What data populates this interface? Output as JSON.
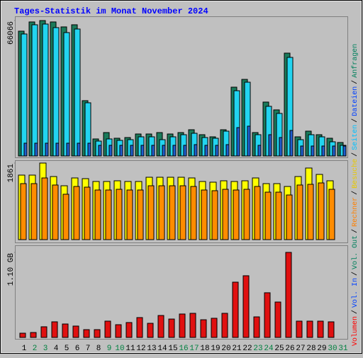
{
  "title": "Tages-Statistik im Monat November 2024",
  "legend_separator": "/",
  "chart_data": [
    {
      "type": "bar",
      "ylim": [
        0,
        66066
      ],
      "yticks": [
        66066
      ],
      "series": [
        {
          "name": "Anfragen",
          "color": "#1a7a5a",
          "label_color": "#00805c",
          "values": [
            60896,
            65394,
            66066,
            65394,
            62972,
            64010,
            26988,
            8304,
            11418,
            8650,
            8996,
            10726,
            10726,
            11418,
            10726,
            11418,
            12802,
            10380,
            9342,
            12802,
            33562,
            37368,
            11418,
            26296,
            22490,
            50170,
            9342,
            12110,
            10380,
            8650,
            6574
          ]
        },
        {
          "name": "Dateien",
          "color": "#22d4f0",
          "label_color": "#0040ff",
          "values": [
            59512,
            64010,
            64356,
            62626,
            60204,
            61934,
            25950,
            7266,
            8304,
            7612,
            7958,
            9342,
            9342,
            7958,
            9342,
            10380,
            11072,
            8996,
            8650,
            12110,
            31832,
            35984,
            10380,
            24220,
            20760,
            48094,
            7958,
            10380,
            9342,
            6920,
            5190
          ]
        },
        {
          "name": "Seiten",
          "color": "#1f5fd0",
          "label_color": "#00c0ff",
          "values": [
            6228,
            6228,
            6228,
            6228,
            6228,
            6228,
            6228,
            5190,
            5190,
            5190,
            5190,
            5190,
            5190,
            5190,
            5190,
            5190,
            5536,
            5190,
            5190,
            5536,
            13840,
            14532,
            5190,
            10380,
            8996,
            12456,
            4844,
            4844,
            4844,
            4844,
            4844
          ]
        }
      ]
    },
    {
      "type": "bar",
      "ylim": [
        0,
        1861
      ],
      "yticks": [
        1861
      ],
      "series": [
        {
          "name": "Besuche",
          "color": "#ffff00",
          "label_color": "#e8c800",
          "values": [
            1568,
            1568,
            1861,
            1533,
            1309,
            1499,
            1482,
            1413,
            1413,
            1430,
            1413,
            1413,
            1516,
            1516,
            1516,
            1516,
            1499,
            1413,
            1396,
            1430,
            1413,
            1430,
            1499,
            1361,
            1361,
            1292,
            1533,
            1740,
            1585,
            1430,
            0
          ]
        },
        {
          "name": "Rechner",
          "color": "#ff8c00",
          "label_color": "#ff8000",
          "values": [
            1361,
            1361,
            1499,
            1327,
            1103,
            1292,
            1275,
            1206,
            1206,
            1223,
            1206,
            1206,
            1309,
            1309,
            1309,
            1309,
            1292,
            1206,
            1189,
            1223,
            1206,
            1223,
            1292,
            1154,
            1154,
            1085,
            1327,
            1344,
            1378,
            1223,
            0
          ]
        }
      ]
    },
    {
      "type": "bar",
      "ylim": [
        0,
        1.1
      ],
      "yticks": [
        {
          "value": 1.1,
          "label": "1.10 GB"
        }
      ],
      "categories": [
        "1",
        "2",
        "3",
        "4",
        "5",
        "6",
        "7",
        "8",
        "9",
        "10",
        "11",
        "12",
        "13",
        "14",
        "15",
        "16",
        "17",
        "18",
        "19",
        "20",
        "21",
        "22",
        "23",
        "24",
        "25",
        "26",
        "27",
        "28",
        "29",
        "30",
        "31"
      ],
      "category_colors": [
        "#000000",
        "#008040",
        "#008040",
        "#000000",
        "#000000",
        "#000000",
        "#000000",
        "#000000",
        "#008040",
        "#008040",
        "#000000",
        "#000000",
        "#000000",
        "#000000",
        "#000000",
        "#008040",
        "#008040",
        "#000000",
        "#000000",
        "#000000",
        "#000000",
        "#000000",
        "#008040",
        "#008040",
        "#000000",
        "#000000",
        "#000000",
        "#000000",
        "#000000",
        "#008040",
        "#008040"
      ],
      "legend_only": [
        {
          "name": "Vol. Out",
          "label_color": "#00805c"
        },
        {
          "name": "Vol. In",
          "label_color": "#0040ff"
        }
      ],
      "series": [
        {
          "name": "Volumen",
          "color": "#e01010",
          "label_color": "#ff0000",
          "values": [
            0.055,
            0.064,
            0.138,
            0.202,
            0.174,
            0.147,
            0.101,
            0.101,
            0.211,
            0.165,
            0.193,
            0.257,
            0.183,
            0.284,
            0.238,
            0.303,
            0.312,
            0.229,
            0.248,
            0.312,
            0.715,
            0.798,
            0.266,
            0.578,
            0.458,
            1.1,
            0.211,
            0.211,
            0.211,
            0.202,
            0
          ]
        }
      ]
    }
  ]
}
